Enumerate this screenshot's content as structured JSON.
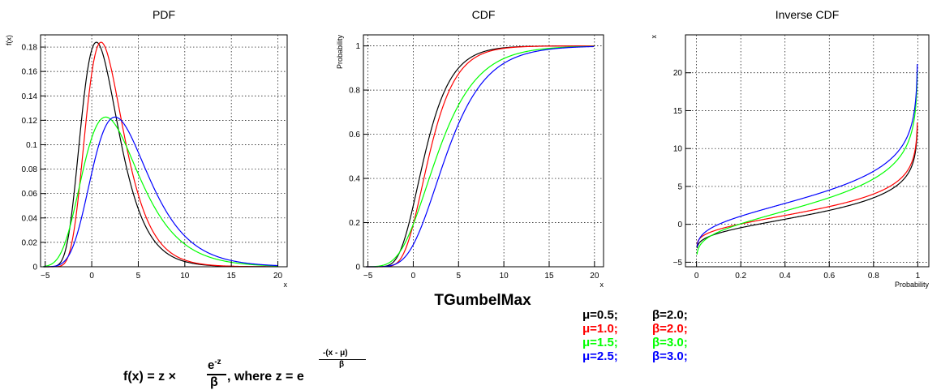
{
  "main_title": "TGumbelMax",
  "colors": {
    "black": "#000000",
    "red": "#ff0000",
    "green": "#00ff00",
    "blue": "#0000ff"
  },
  "legend": [
    {
      "mu": "μ=0.5;",
      "beta": "β=2.0;",
      "color": "#000000"
    },
    {
      "mu": "μ=1.0;",
      "beta": "β=2.0;",
      "color": "#ff0000"
    },
    {
      "mu": "μ=1.5;",
      "beta": "β=3.0;",
      "color": "#00ff00"
    },
    {
      "mu": "μ=2.5;",
      "beta": "β=3.0;",
      "color": "#0000ff"
    }
  ],
  "formula": {
    "lhs": "f(x) =  z  ×",
    "num": "e",
    "num_sup": "-z",
    "den": "β",
    "where": ", where z = e",
    "exp_num": "-(x -  μ)",
    "exp_den": "β"
  },
  "chart_data": [
    {
      "type": "line",
      "title": "PDF",
      "xlabel": "x",
      "ylabel": "f(x)",
      "xlim": [
        -5.5,
        21
      ],
      "ylim": [
        0,
        0.19
      ],
      "grid": true,
      "x_ticks": [
        -5,
        0,
        5,
        10,
        15,
        20
      ],
      "y_ticks": [
        0,
        0.02,
        0.04,
        0.06,
        0.08,
        0.1,
        0.12,
        0.14,
        0.16,
        0.18
      ],
      "x_tick_labels": [
        "−5",
        "0",
        "5",
        "10",
        "15",
        "20"
      ],
      "y_tick_labels": [
        "0",
        "0.02",
        "0.04",
        "0.06",
        "0.08",
        "0.1",
        "0.12",
        "0.14",
        "0.16",
        "0.18"
      ],
      "series": [
        {
          "params": {
            "mu": 0.5,
            "beta": 2.0
          },
          "color": "#000000"
        },
        {
          "params": {
            "mu": 1.0,
            "beta": 2.0
          },
          "color": "#ff0000"
        },
        {
          "params": {
            "mu": 1.5,
            "beta": 3.0
          },
          "color": "#00ff00"
        },
        {
          "params": {
            "mu": 2.5,
            "beta": 3.0
          },
          "color": "#0000ff"
        }
      ]
    },
    {
      "type": "line",
      "title": "CDF",
      "xlabel": "x",
      "ylabel": "Probability",
      "xlim": [
        -5.5,
        21
      ],
      "ylim": [
        0,
        1.05
      ],
      "grid": true,
      "x_ticks": [
        -5,
        0,
        5,
        10,
        15,
        20
      ],
      "y_ticks": [
        0,
        0.2,
        0.4,
        0.6,
        0.8,
        1
      ],
      "x_tick_labels": [
        "−5",
        "0",
        "5",
        "10",
        "15",
        "20"
      ],
      "y_tick_labels": [
        "0",
        "0.2",
        "0.4",
        "0.6",
        "0.8",
        "1"
      ],
      "series": [
        {
          "params": {
            "mu": 0.5,
            "beta": 2.0
          },
          "color": "#000000"
        },
        {
          "params": {
            "mu": 1.0,
            "beta": 2.0
          },
          "color": "#ff0000"
        },
        {
          "params": {
            "mu": 1.5,
            "beta": 3.0
          },
          "color": "#00ff00"
        },
        {
          "params": {
            "mu": 2.5,
            "beta": 3.0
          },
          "color": "#0000ff"
        }
      ]
    },
    {
      "type": "line",
      "title": "Inverse CDF",
      "xlabel": "Probability",
      "ylabel": "x",
      "xlim": [
        -0.05,
        1.05
      ],
      "ylim": [
        -5.6,
        25
      ],
      "grid": true,
      "x_ticks": [
        0,
        0.2,
        0.4,
        0.6,
        0.8,
        1
      ],
      "y_ticks": [
        -5,
        0,
        5,
        10,
        15,
        20
      ],
      "x_tick_labels": [
        "0",
        "0.2",
        "0.4",
        "0.6",
        "0.8",
        "1"
      ],
      "y_tick_labels": [
        "−5",
        "0",
        "5",
        "10",
        "15",
        "20"
      ],
      "series": [
        {
          "params": {
            "mu": 0.5,
            "beta": 2.0
          },
          "color": "#000000"
        },
        {
          "params": {
            "mu": 1.0,
            "beta": 2.0
          },
          "color": "#ff0000"
        },
        {
          "params": {
            "mu": 1.5,
            "beta": 3.0
          },
          "color": "#00ff00"
        },
        {
          "params": {
            "mu": 2.5,
            "beta": 3.0
          },
          "color": "#0000ff"
        }
      ]
    }
  ]
}
